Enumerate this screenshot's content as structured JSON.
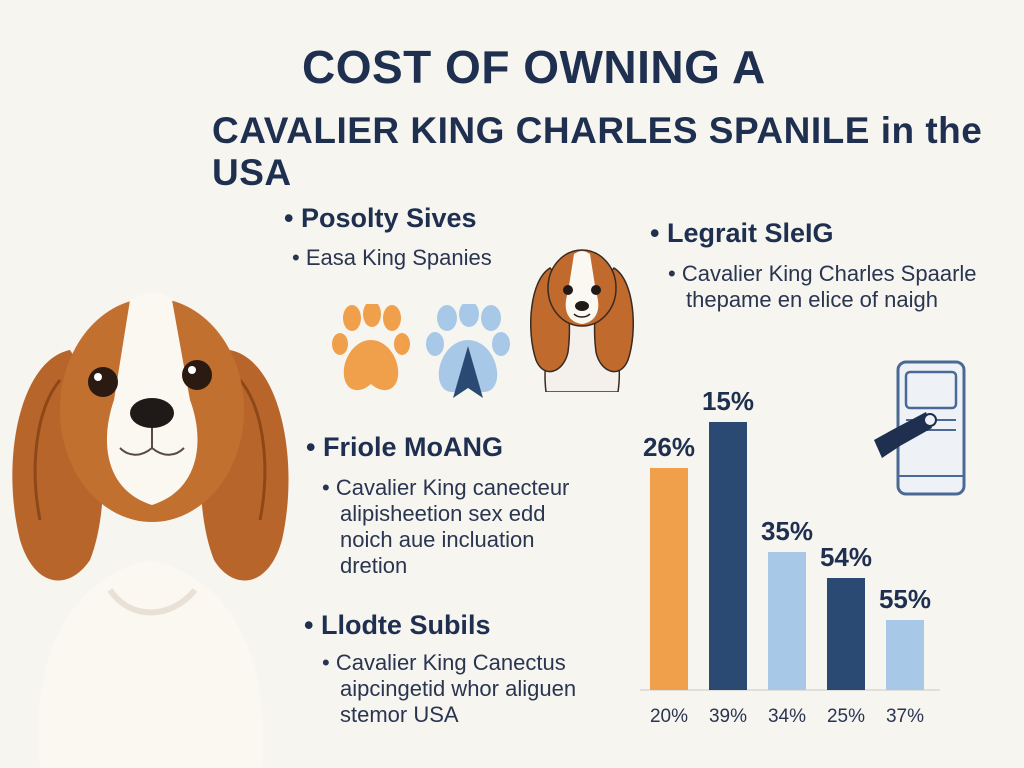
{
  "title": {
    "line1": "COST OF OWNING A",
    "line2": "CAVALIER KING CHARLES SPANILE in the USA"
  },
  "sections": [
    {
      "heading": "• Posolty Sives",
      "lines": [
        "• Easa King Spanies"
      ]
    },
    {
      "heading": "• Legrait SleIG",
      "lines": [
        "• Cavalier King Charles Spaarle",
        "thepame en elice of naigh"
      ]
    },
    {
      "heading": "• Friole MoANG",
      "lines": [
        "• Cavalier King canecteur",
        "alipisheetion sex edd",
        "noich aue incluation",
        "dretion"
      ]
    },
    {
      "heading": "• Llodte Subils",
      "lines": [
        "• Cavalier King Canectus",
        "aipcingetid whor aliguen",
        "stemor USA"
      ]
    }
  ],
  "icons": {
    "paw_orange": "orange-paw-icon",
    "paw_blue": "blue-paw-icon",
    "device": "device-icon",
    "dog_photo": "cavalier-photo",
    "dog_illustration": "cavalier-illustration"
  },
  "colors": {
    "orange": "#f0a04b",
    "navy": "#2b4a73",
    "light_blue": "#a8c8e8",
    "text": "#1f2f4f"
  },
  "chart_data": {
    "type": "bar",
    "categories": [
      "20%",
      "39%",
      "34%",
      "25%",
      "37%"
    ],
    "values": [
      26,
      15,
      35,
      54,
      55
    ],
    "value_labels": [
      "26%",
      "15%",
      "35%",
      "54%",
      "55%"
    ],
    "bar_colors": [
      "#f0a04b",
      "#2b4a73",
      "#a8c8e8",
      "#2b4a73",
      "#a8c8e8"
    ],
    "title": "",
    "xlabel": "",
    "ylabel": "",
    "grid": false,
    "legend": "none"
  }
}
